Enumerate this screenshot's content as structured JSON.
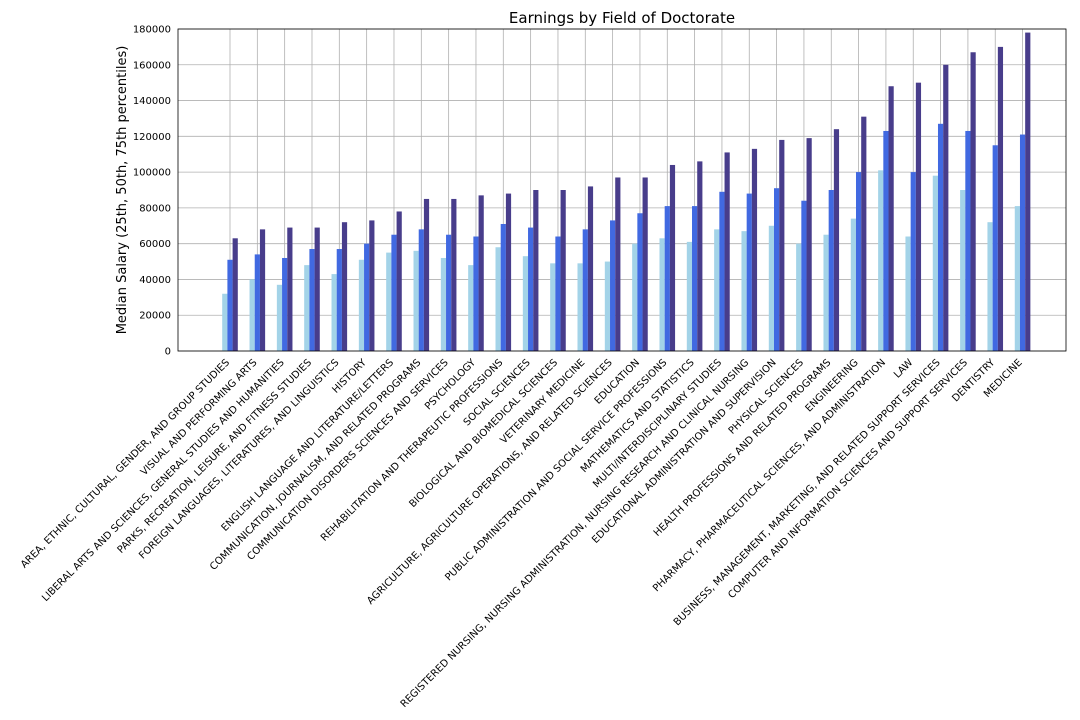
{
  "chart_data": {
    "type": "bar",
    "title": "Earnings by Field of Doctorate",
    "xlabel": "",
    "ylabel": "Median Salary (25th, 50th, 75th percentiles)",
    "ylim": [
      0,
      180000
    ],
    "yticks": [
      0,
      20000,
      40000,
      60000,
      80000,
      100000,
      120000,
      140000,
      160000,
      180000
    ],
    "grid": true,
    "colors": [
      "#a3d3e8",
      "#4169e1",
      "#483d8b"
    ],
    "categories": [
      "AREA, ETHNIC, CULTURAL, GENDER, AND GROUP STUDIES",
      "VISUAL AND PERFORMING ARTS",
      "LIBERAL ARTS AND SCIENCES, GENERAL STUDIES AND HUMANITIES",
      "PARKS, RECREATION, LEISURE, AND FITNESS STUDIES",
      "FOREIGN LANGUAGES, LITERATURES, AND LINGUISTICS",
      "HISTORY",
      "ENGLISH LANGUAGE AND LITERATURE/LETTERS",
      "COMMUNICATION, JOURNALISM, AND RELATED PROGRAMS",
      "COMMUNICATION DISORDERS SCIENCES AND SERVICES",
      "PSYCHOLOGY",
      "REHABILITATION AND THERAPEUTIC PROFESSIONS",
      "SOCIAL SCIENCES",
      "BIOLOGICAL AND BIOMEDICAL SCIENCES",
      "VETERINARY MEDICINE",
      "AGRICULTURE, AGRICULTURE OPERATIONS, AND RELATED SCIENCES",
      "EDUCATION",
      "PUBLIC ADMINISTRATION AND SOCIAL SERVICE PROFESSIONS",
      "MATHEMATICS AND STATISTICS",
      "MULTI/INTERDISCIPLINARY STUDIES",
      "REGISTERED NURSING, NURSING ADMINISTRATION, NURSING RESEARCH AND CLINICAL NURSING",
      "EDUCATIONAL ADMINISTRATION AND SUPERVISION",
      "PHYSICAL SCIENCES",
      "HEALTH PROFESSIONS AND RELATED PROGRAMS",
      "ENGINEERING",
      "PHARMACY, PHARMACEUTICAL SCIENCES, AND ADMINISTRATION",
      "LAW",
      "BUSINESS, MANAGEMENT, MARKETING, AND RELATED SUPPORT SERVICES",
      "COMPUTER AND INFORMATION SCIENCES AND SUPPORT SERVICES",
      "DENTISTRY",
      "MEDICINE"
    ],
    "series": [
      {
        "values": [
          32000,
          40000,
          37000,
          48000,
          43000,
          51000,
          55000,
          56000,
          52000,
          48000,
          58000,
          53000,
          49000,
          49000,
          50000,
          60000,
          63000,
          61000,
          68000,
          67000,
          70000,
          60000,
          65000,
          74000,
          101000,
          64000,
          98000,
          90000,
          72000,
          81000
        ]
      },
      {
        "values": [
          51000,
          54000,
          52000,
          57000,
          57000,
          60000,
          65000,
          68000,
          65000,
          64000,
          71000,
          69000,
          64000,
          68000,
          73000,
          77000,
          81000,
          81000,
          89000,
          88000,
          91000,
          84000,
          90000,
          100000,
          123000,
          100000,
          127000,
          123000,
          115000,
          121000
        ]
      },
      {
        "values": [
          63000,
          68000,
          69000,
          69000,
          72000,
          73000,
          78000,
          85000,
          85000,
          87000,
          88000,
          90000,
          90000,
          92000,
          97000,
          97000,
          104000,
          106000,
          111000,
          113000,
          118000,
          119000,
          124000,
          131000,
          148000,
          150000,
          160000,
          167000,
          170000,
          178000
        ]
      }
    ]
  }
}
